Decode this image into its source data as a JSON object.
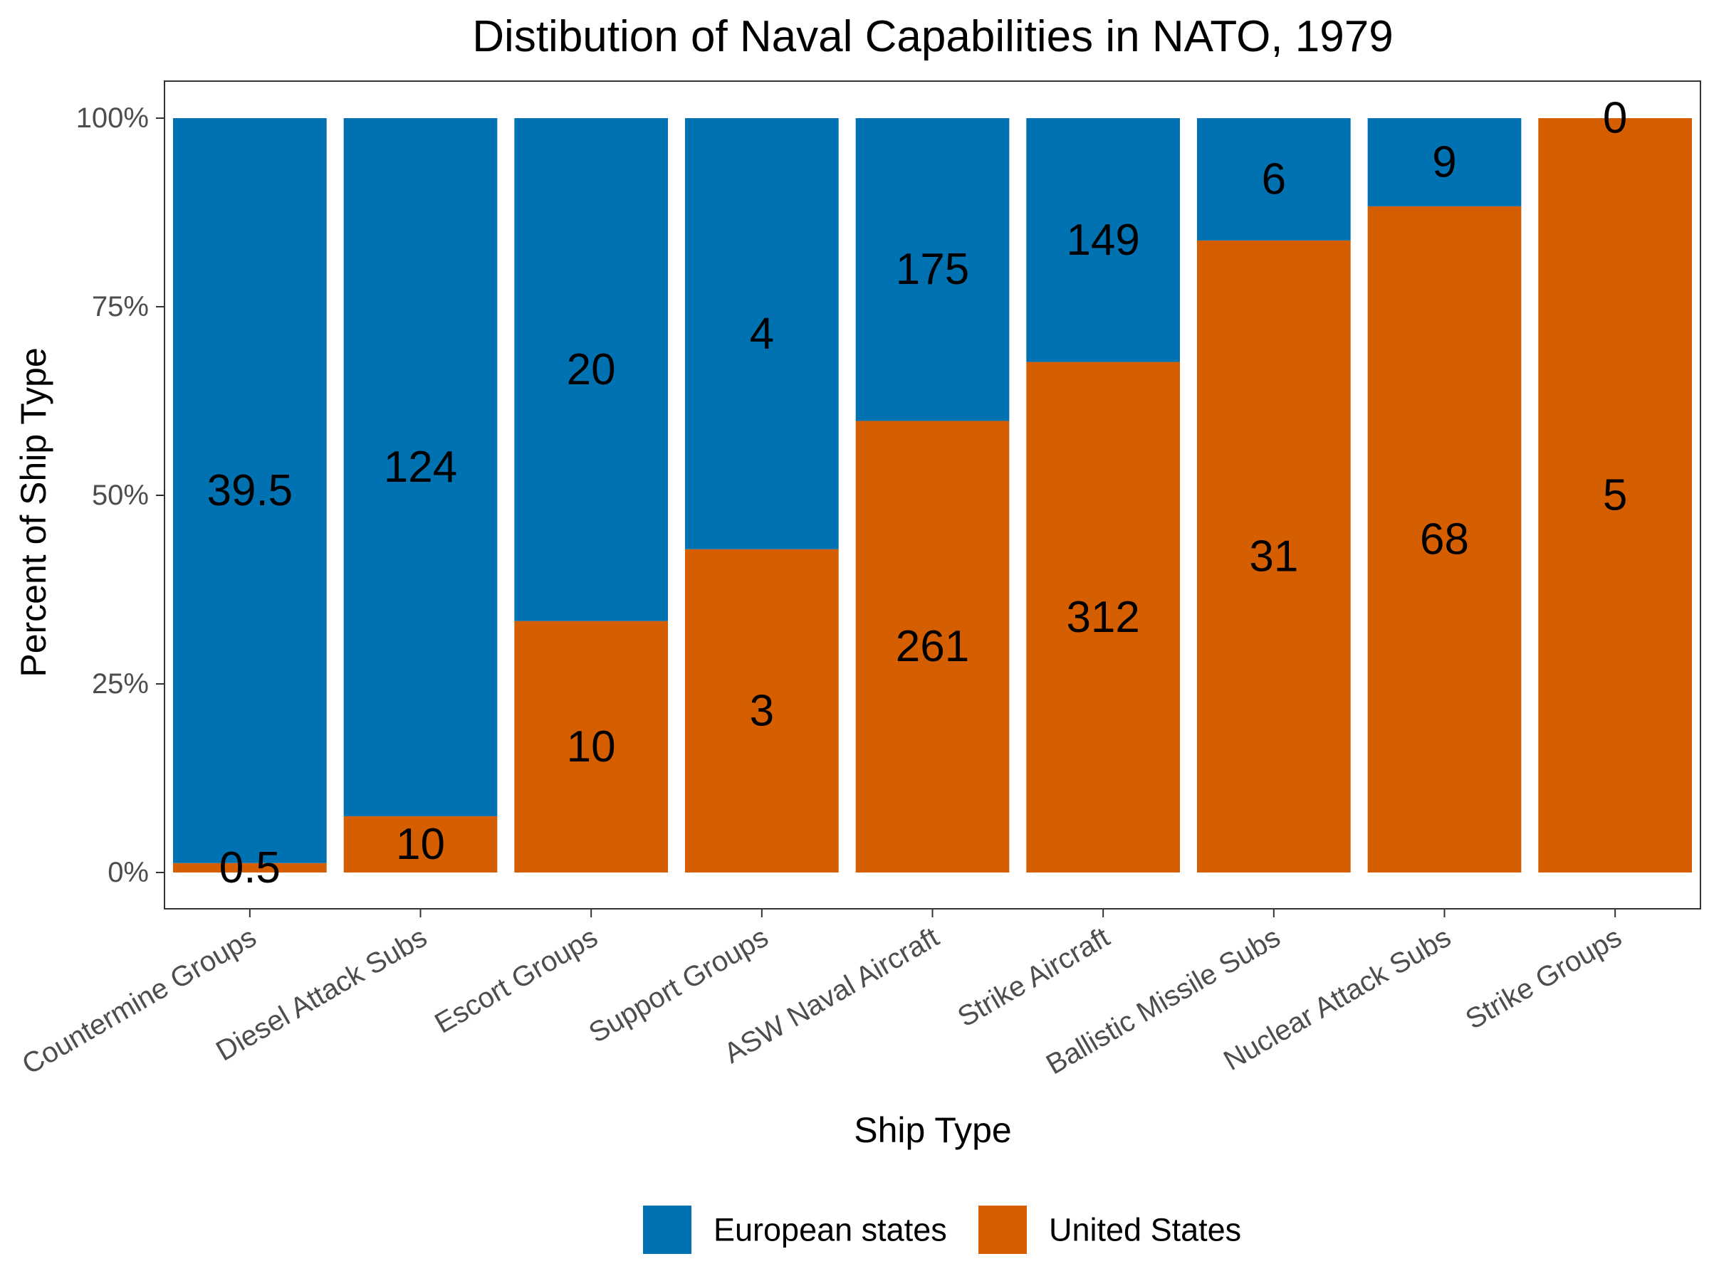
{
  "chart_data": {
    "type": "bar",
    "stacked": true,
    "normalized": true,
    "title": "Distibution of Naval Capabilities in NATO, 1979",
    "xlabel": "Ship Type",
    "ylabel": "Percent of Ship Type",
    "ylim": [
      0,
      1
    ],
    "y_ticks": [
      "0%",
      "25%",
      "50%",
      "75%",
      "100%"
    ],
    "grid": false,
    "legend_position": "bottom",
    "categories": [
      "Countermine Groups",
      "Diesel Attack Subs",
      "Escort Groups",
      "Support Groups",
      "ASW Naval Aircraft",
      "Strike Aircraft",
      "Ballistic Missile Subs",
      "Nuclear Attack Subs",
      "Strike Groups"
    ],
    "series": [
      {
        "name": "European states",
        "color": "#0072B2",
        "values": [
          39.5,
          124,
          20,
          4,
          175,
          149,
          6,
          9,
          0
        ],
        "labels": [
          "39.5",
          "124",
          "20",
          "4",
          "175",
          "149",
          "6",
          "9",
          "0"
        ]
      },
      {
        "name": "United States",
        "color": "#D55E00",
        "values": [
          0.5,
          10,
          10,
          3,
          261,
          312,
          31,
          68,
          5
        ],
        "labels": [
          "0.5",
          "10",
          "10",
          "3",
          "261",
          "312",
          "31",
          "68",
          "5"
        ]
      }
    ]
  }
}
